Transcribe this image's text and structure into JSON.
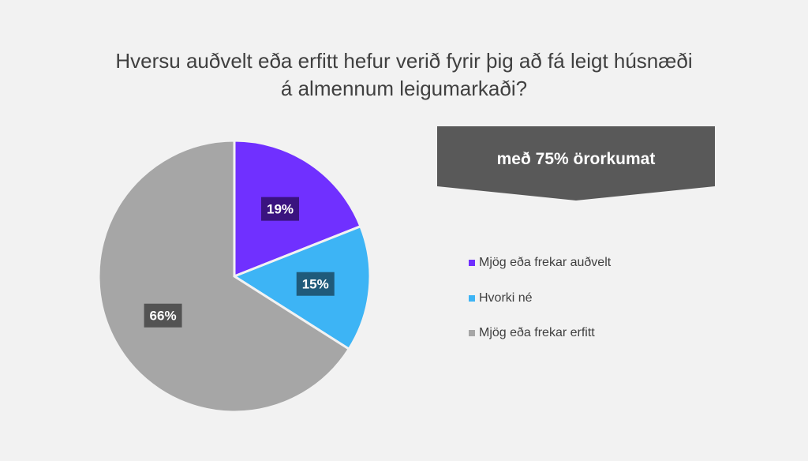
{
  "chart_data": {
    "type": "pie",
    "title": [
      "Hversu auðvelt eða erfitt hefur verið fyrir þig að fá leigt húsnæði",
      "á almennum leigumarkaði?"
    ],
    "subtitle": "með 75% örorkumat",
    "categories": [
      "Mjög eða frekar auðvelt",
      "Hvorki né",
      "Mjög eða frekar erfitt"
    ],
    "values": [
      19,
      15,
      66
    ],
    "labels": [
      "19%",
      "15%",
      "66%"
    ],
    "colors": [
      "#7030ff",
      "#3db4f5",
      "#a6a6a6"
    ],
    "label_colors": [
      "#3a137f",
      "#1f5a7a",
      "#535353"
    ],
    "legend_position": "right"
  },
  "banner_color": "#595959"
}
